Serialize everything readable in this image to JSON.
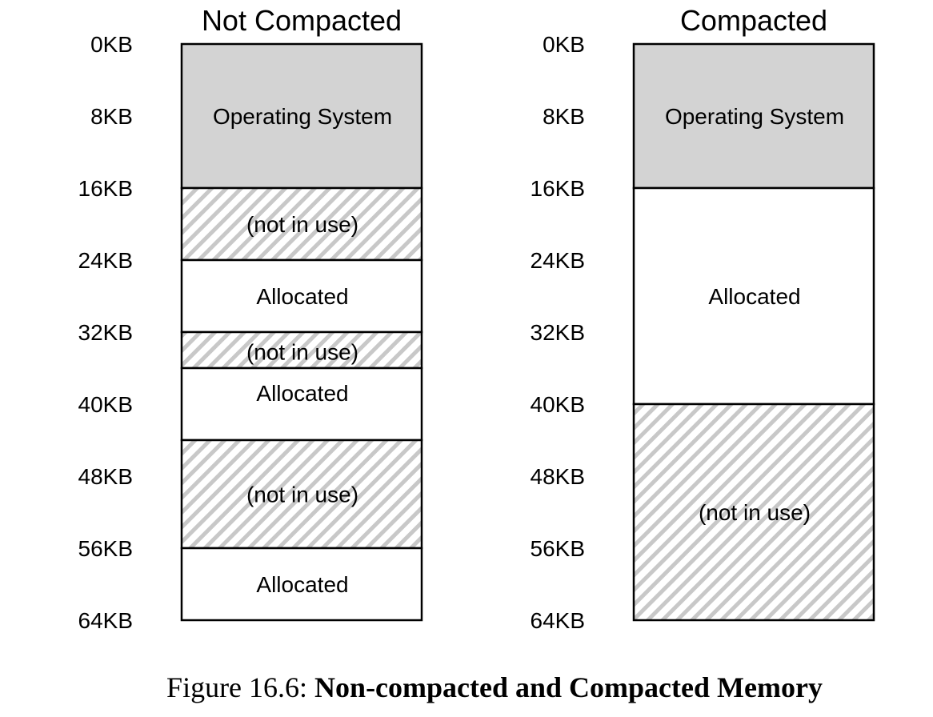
{
  "figure": {
    "caption_prefix": "Figure 16.6:",
    "caption_title": "Non-compacted and Compacted Memory"
  },
  "address_labels": [
    "0KB",
    "8KB",
    "16KB",
    "24KB",
    "32KB",
    "40KB",
    "48KB",
    "56KB",
    "64KB"
  ],
  "panels": [
    {
      "title": "Not Compacted",
      "segments": [
        {
          "start_kb": 0,
          "end_kb": 16,
          "kind": "os",
          "label": "Operating System"
        },
        {
          "start_kb": 16,
          "end_kb": 24,
          "kind": "free",
          "label": "(not in use)"
        },
        {
          "start_kb": 24,
          "end_kb": 32,
          "kind": "used",
          "label": "Allocated"
        },
        {
          "start_kb": 32,
          "end_kb": 36,
          "kind": "free",
          "label": "(not in use)"
        },
        {
          "start_kb": 36,
          "end_kb": 44,
          "kind": "used",
          "label": "Allocated"
        },
        {
          "start_kb": 44,
          "end_kb": 56,
          "kind": "free",
          "label": "(not in use)"
        },
        {
          "start_kb": 56,
          "end_kb": 64,
          "kind": "used",
          "label": "Allocated"
        }
      ]
    },
    {
      "title": "Compacted",
      "segments": [
        {
          "start_kb": 0,
          "end_kb": 16,
          "kind": "os",
          "label": "Operating System"
        },
        {
          "start_kb": 16,
          "end_kb": 40,
          "kind": "used",
          "label": "Allocated"
        },
        {
          "start_kb": 40,
          "end_kb": 64,
          "kind": "free",
          "label": "(not in use)"
        }
      ]
    }
  ],
  "colors": {
    "os_fill": "#d3d3d3",
    "used_fill": "#ffffff",
    "stripe": "#c8c8c8",
    "outline": "#000000"
  }
}
